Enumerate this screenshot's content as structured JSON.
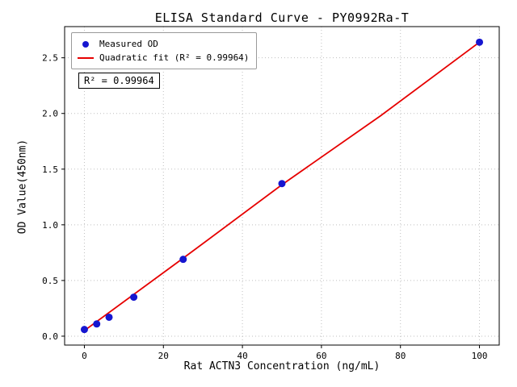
{
  "figure": {
    "background": "#ffffff"
  },
  "chart_data": {
    "type": "scatter",
    "title": "ELISA Standard Curve - PY0992Ra-T",
    "xlabel": "Rat ACTN3 Concentration (ng/mL)",
    "ylabel": "OD Value(450nm)",
    "xlim": [
      -5,
      105
    ],
    "ylim": [
      -0.08,
      2.78
    ],
    "x_ticks": [
      0,
      20,
      40,
      60,
      80,
      100
    ],
    "y_ticks": [
      0.0,
      0.5,
      1.0,
      1.5,
      2.0,
      2.5
    ],
    "grid": "dotted",
    "grid_color": "#bfbfbf",
    "series": [
      {
        "name": "Measured OD",
        "type": "scatter",
        "color": "#1616d0",
        "x": [
          0,
          3.125,
          6.25,
          12.5,
          25,
          50,
          100
        ],
        "y": [
          0.06,
          0.11,
          0.17,
          0.35,
          0.69,
          1.37,
          2.64
        ]
      },
      {
        "name": "Quadratic fit (R² = 0.99964)",
        "type": "line",
        "color": "#e60000",
        "x": [
          0,
          25,
          50,
          75,
          100
        ],
        "y": [
          0.05,
          0.7,
          1.36,
          1.98,
          2.64
        ]
      }
    ],
    "legend": {
      "position": "upper-left",
      "entries": [
        "Measured OD",
        "Quadratic fit (R² = 0.99964)"
      ]
    },
    "annotation": "R² = 0.99964",
    "r_squared": 0.99964
  }
}
